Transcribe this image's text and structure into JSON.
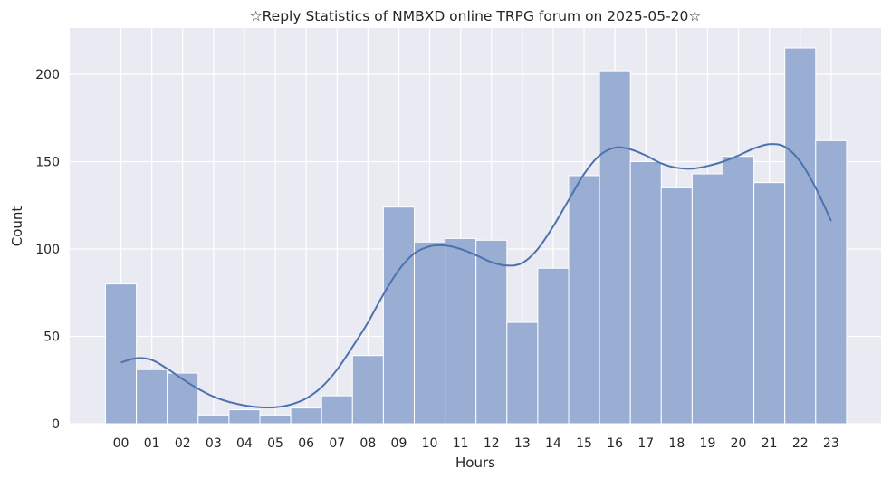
{
  "chart_data": {
    "type": "bar",
    "title": "☆Reply Statistics of NMBXD online TRPG forum on 2025-05-20☆",
    "xlabel": "Hours",
    "ylabel": "Count",
    "categories": [
      "00",
      "01",
      "02",
      "03",
      "04",
      "05",
      "06",
      "07",
      "08",
      "09",
      "10",
      "11",
      "12",
      "13",
      "14",
      "15",
      "16",
      "17",
      "18",
      "19",
      "20",
      "21",
      "22",
      "23"
    ],
    "values": [
      80,
      31,
      29,
      5,
      8,
      5,
      9,
      16,
      39,
      124,
      104,
      106,
      105,
      58,
      89,
      142,
      202,
      150,
      135,
      143,
      153,
      138,
      215,
      162
    ],
    "yticks": [
      0,
      50,
      100,
      150,
      200
    ],
    "ylim": [
      0,
      225
    ],
    "grid": true,
    "kde_curve": {
      "x": [
        0,
        0.5,
        1,
        1.5,
        2,
        2.5,
        3,
        3.5,
        4,
        4.5,
        5,
        5.5,
        6,
        6.5,
        7,
        7.5,
        8,
        8.5,
        9,
        9.5,
        10,
        10.5,
        11,
        11.5,
        12,
        12.5,
        13,
        13.5,
        14,
        14.5,
        15,
        15.5,
        16,
        16.5,
        17,
        17.5,
        18,
        18.5,
        19,
        19.5,
        20,
        20.5,
        21,
        21.5,
        22,
        22.5,
        23
      ],
      "y": [
        35,
        37.5,
        36.5,
        31.5,
        25.5,
        20,
        15.5,
        12.5,
        10.5,
        9.5,
        9.5,
        11,
        14.5,
        21,
        31,
        44,
        58,
        74,
        88,
        97.5,
        101.5,
        102,
        100,
        96.5,
        92.5,
        90.5,
        92,
        100,
        113,
        128,
        143,
        153.5,
        158,
        157,
        153.5,
        149,
        146.5,
        146,
        147.5,
        150,
        153.5,
        157.5,
        160,
        158.5,
        150,
        135,
        116
      ]
    },
    "colors": {
      "bar_fill": "#9aaed3",
      "bar_edge": "#ffffff",
      "kde_line": "#4c72b0",
      "plot_background": "#eaeaf2",
      "grid": "#ffffff"
    }
  }
}
